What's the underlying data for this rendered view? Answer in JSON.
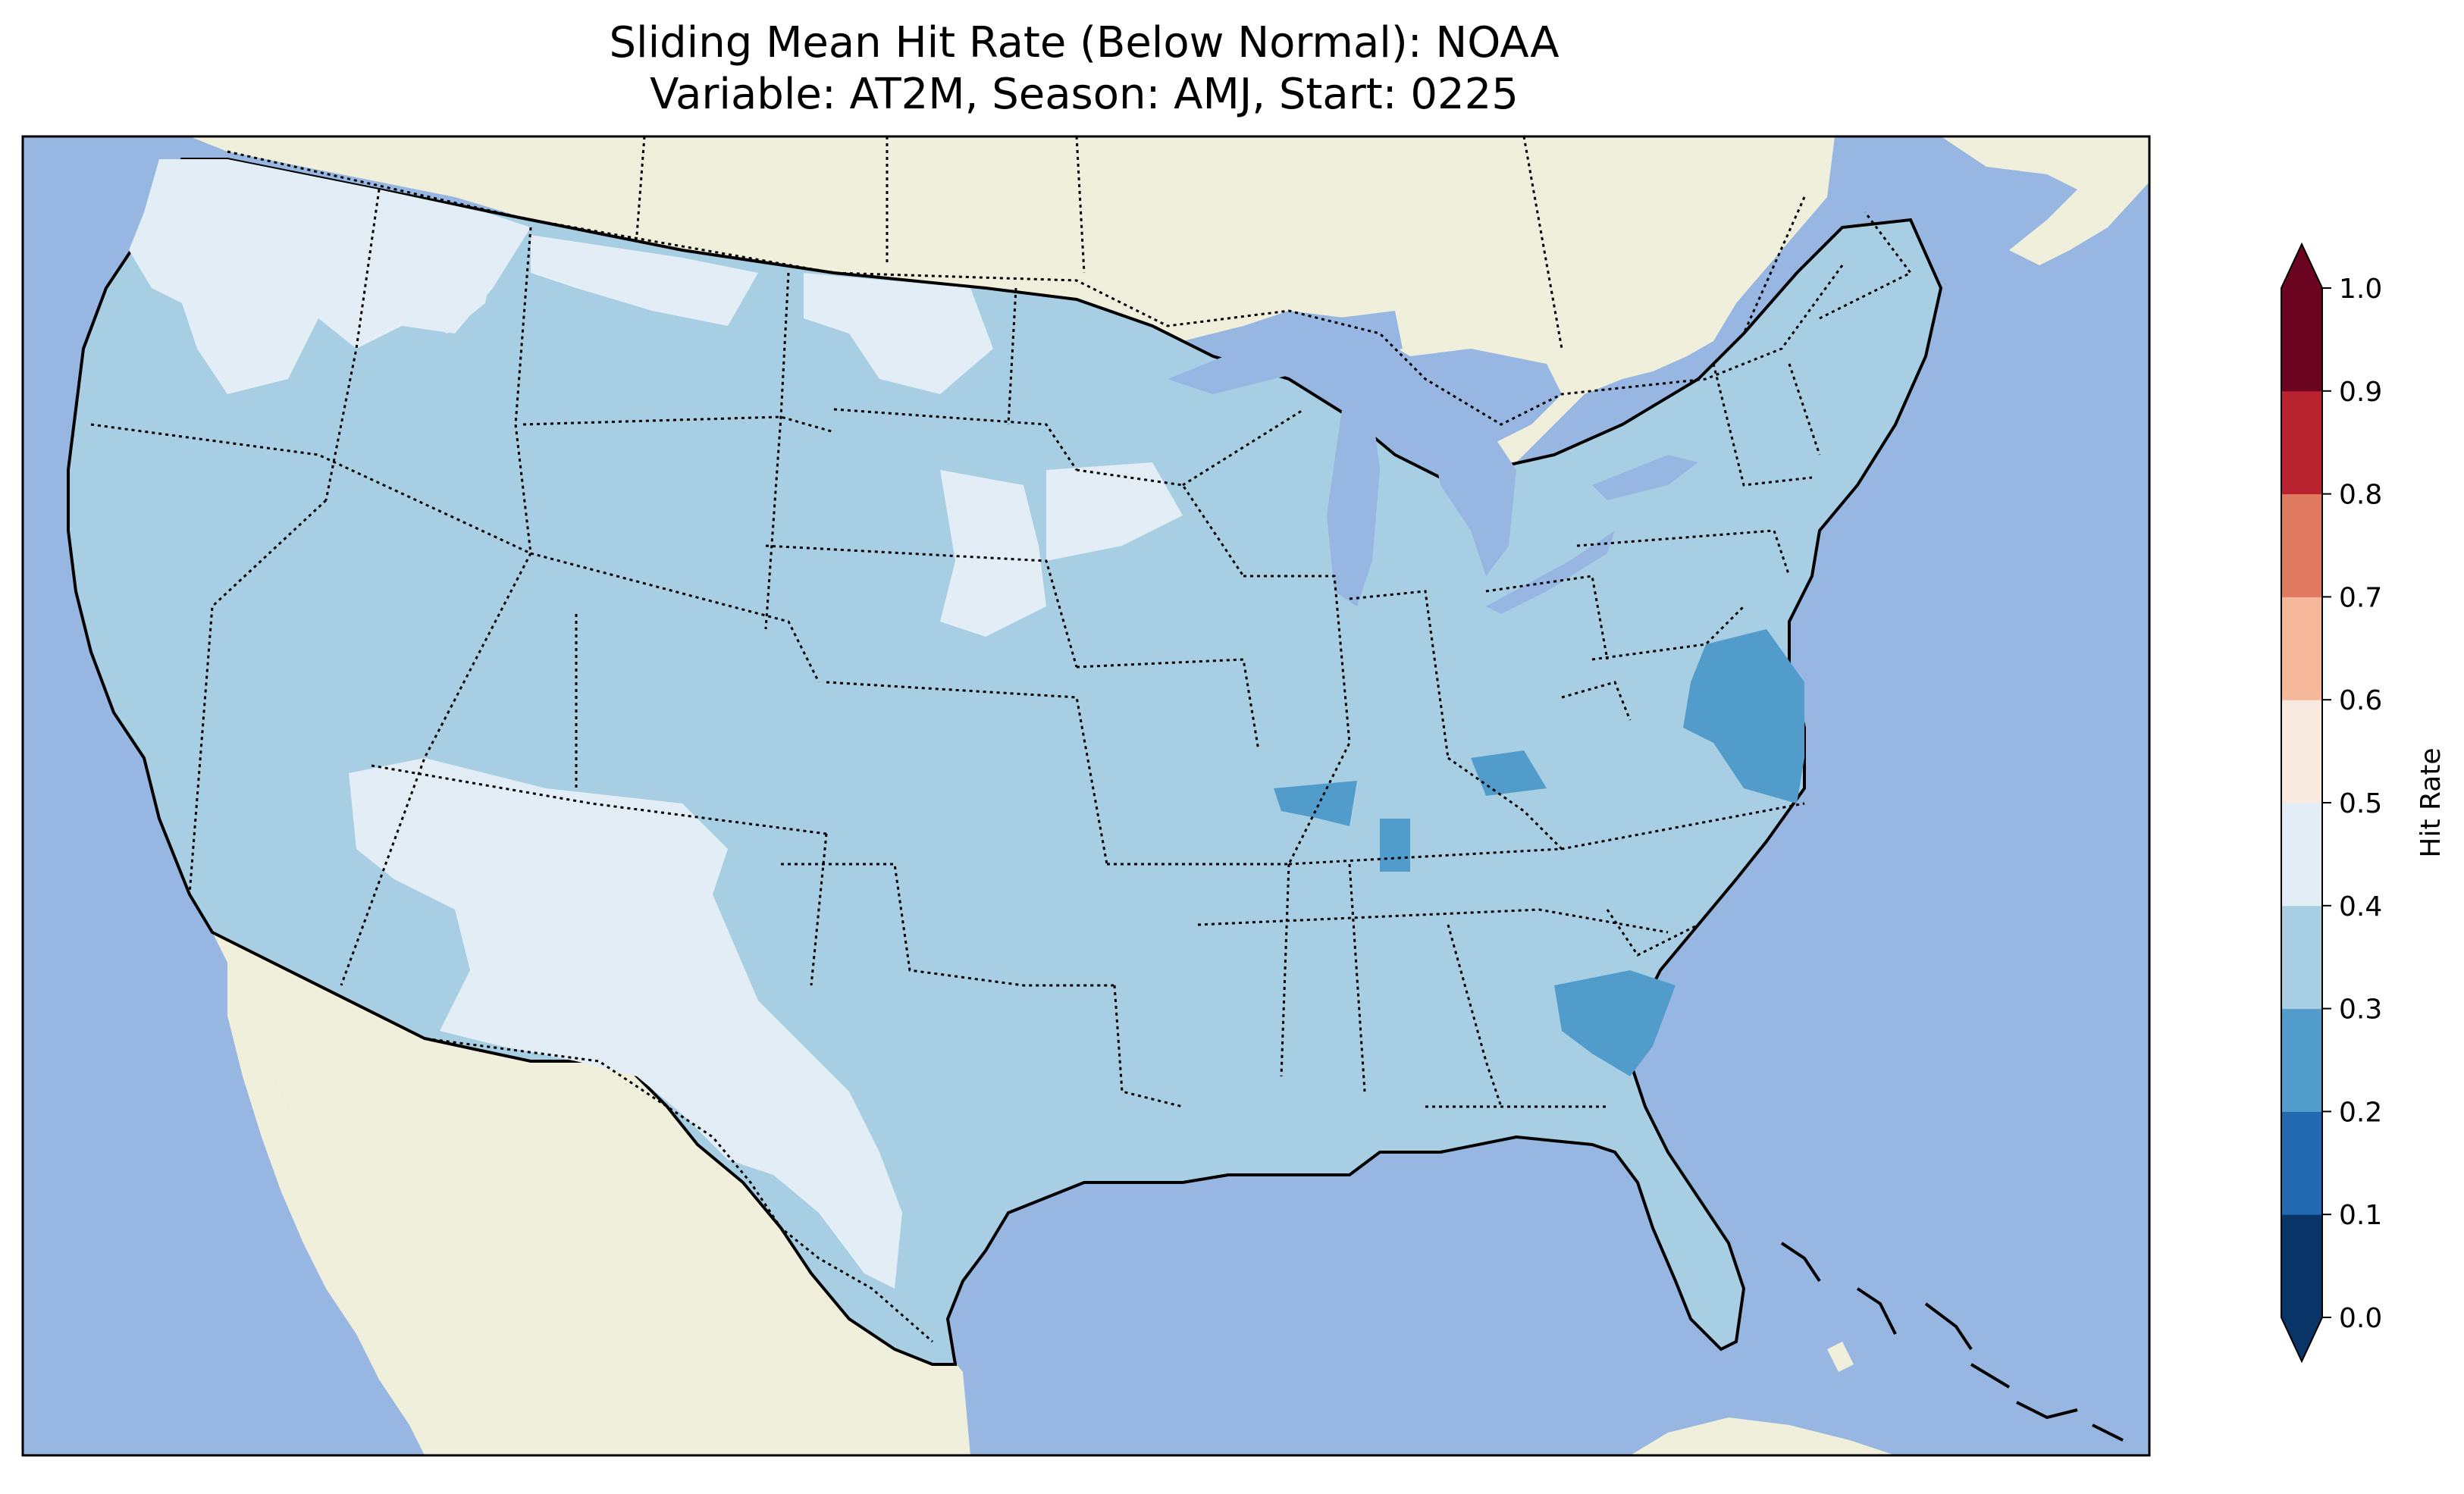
{
  "header": {
    "title_line1": "Sliding Mean Hit Rate (Below Normal): NOAA",
    "title_line2": "Variable: AT2M, Season: AMJ, Start: 0225"
  },
  "map": {
    "ocean_color": "#97b6e1",
    "land_color": "#efefdb",
    "extent": "Contiguous United States",
    "regions": [
      {
        "name": "Pacific Northwest",
        "hit_rate_bin": "0.4-0.5"
      },
      {
        "name": "Southwest",
        "hit_rate_bin": "0.4-0.5"
      },
      {
        "name": "West Texas",
        "hit_rate_bin": "0.4-0.5"
      },
      {
        "name": "Northern Plains",
        "hit_rate_bin": "0.4-0.5"
      },
      {
        "name": "Chesapeake Bay area",
        "hit_rate_bin": "0.2-0.3"
      },
      {
        "name": "Kentucky",
        "hit_rate_bin": "0.2-0.3"
      },
      {
        "name": "Georgia/South Carolina coast",
        "hit_rate_bin": "0.2-0.3"
      },
      {
        "name": "Remaining CONUS",
        "hit_rate_bin": "0.3-0.4"
      }
    ]
  },
  "colorbar": {
    "label": "Hit Rate",
    "ticks": [
      "0.0",
      "0.1",
      "0.2",
      "0.3",
      "0.4",
      "0.5",
      "0.6",
      "0.7",
      "0.8",
      "0.9",
      "1.0"
    ],
    "colors": [
      "#053061",
      "#2166ac",
      "#4393c3",
      "#92c5de",
      "#d1e5f0",
      "#f7f7f7",
      "#fddbc7",
      "#f4a582",
      "#d6604d",
      "#b2182b",
      "#67001f"
    ],
    "bin_colors": [
      "#083468",
      "#2369b1",
      "#519cca",
      "#a8cee3",
      "#e2edf5",
      "#f8e9e1",
      "#f6b89b",
      "#df7a61",
      "#b9232f",
      "#6a0420"
    ]
  }
}
